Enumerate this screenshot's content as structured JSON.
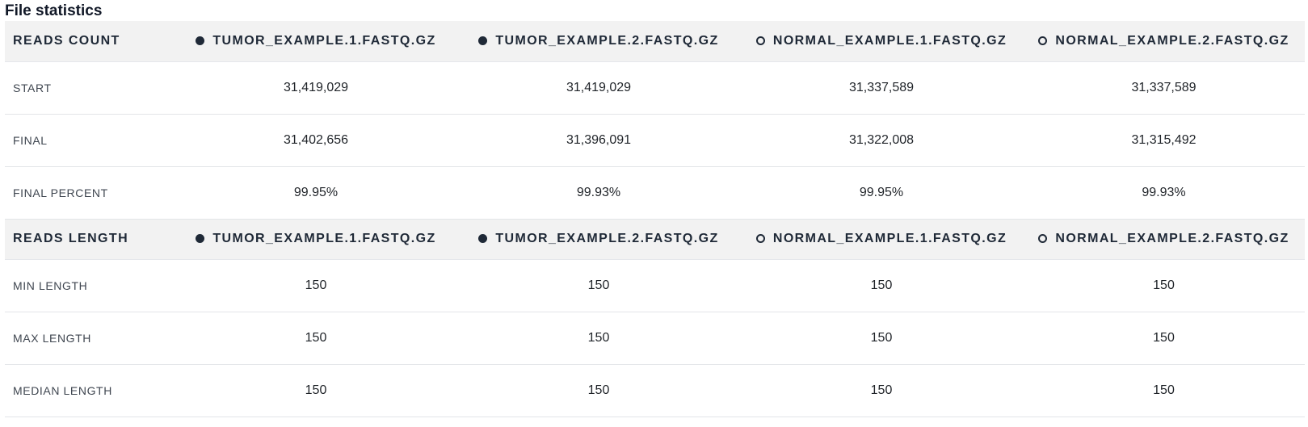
{
  "page_title": "File statistics",
  "files": [
    {
      "name": "TUMOR_EXAMPLE.1.FASTQ.GZ",
      "marker": "filled-circle"
    },
    {
      "name": "TUMOR_EXAMPLE.2.FASTQ.GZ",
      "marker": "filled-circle"
    },
    {
      "name": "NORMAL_EXAMPLE.1.FASTQ.GZ",
      "marker": "hollow-circle"
    },
    {
      "name": "NORMAL_EXAMPLE.2.FASTQ.GZ",
      "marker": "hollow-circle"
    }
  ],
  "sections": [
    {
      "title": "READS COUNT",
      "rows": [
        {
          "label": "START",
          "values": [
            "31,419,029",
            "31,419,029",
            "31,337,589",
            "31,337,589"
          ]
        },
        {
          "label": "FINAL",
          "values": [
            "31,402,656",
            "31,396,091",
            "31,322,008",
            "31,315,492"
          ]
        },
        {
          "label": "FINAL PERCENT",
          "values": [
            "99.95%",
            "99.93%",
            "99.95%",
            "99.93%"
          ]
        }
      ]
    },
    {
      "title": "READS LENGTH",
      "rows": [
        {
          "label": "MIN LENGTH",
          "values": [
            "150",
            "150",
            "150",
            "150"
          ]
        },
        {
          "label": "MAX LENGTH",
          "values": [
            "150",
            "150",
            "150",
            "150"
          ]
        },
        {
          "label": "MEDIAN LENGTH",
          "values": [
            "150",
            "150",
            "150",
            "150"
          ]
        }
      ]
    }
  ],
  "colors": {
    "header_bg": "#f2f2f2",
    "marker": "#1f2937",
    "divider": "#e3e5e8"
  }
}
